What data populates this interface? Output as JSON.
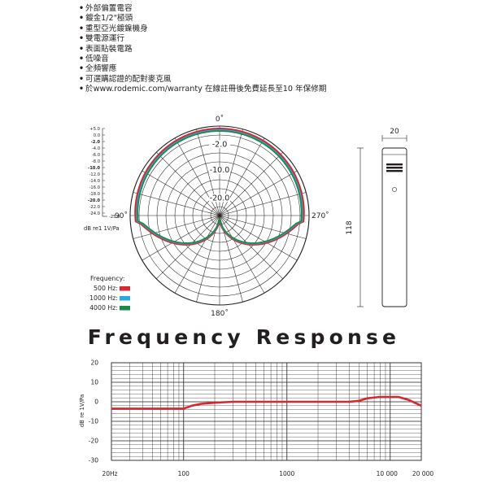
{
  "features": [
    "外部偏置電容",
    "鍍金1/2\"極頭",
    "重型亞光鍍鎳機身",
    "雙電源運行",
    "表面貼裝電路",
    "低噪音",
    "全頻響應",
    "可選購認證的配對麥克風",
    "於www.rodemic.com/warranty 在線註冊後免費延長至10 年保修期"
  ],
  "polar": {
    "angles": [
      "0˚",
      "90˚",
      "270˚",
      "180˚"
    ],
    "ring_labels": [
      "-2.0",
      "-10.0",
      "-20.0"
    ],
    "scale_labels": [
      "+5.0",
      "0.0",
      "-2.0",
      "-4.0",
      "-6.0",
      "-8.0",
      "-10.0",
      "-12.0",
      "-14.0",
      "-16.0",
      "-18.0",
      "-20.0",
      "-22.0",
      "-24.0",
      "-25.0"
    ],
    "unit_label": "dB re1 1V/Pa",
    "legend_title": "Frequency:",
    "legend": [
      {
        "label": "500 Hz:",
        "color": "#d7282f"
      },
      {
        "label": "1000 Hz:",
        "color": "#27aae1"
      },
      {
        "label": "4000 Hz:",
        "color": "#1a8a4a"
      }
    ],
    "series": [
      {
        "name": "500 Hz",
        "color": "#d7282f"
      },
      {
        "name": "1000 Hz",
        "color": "#27aae1"
      },
      {
        "name": "4000 Hz",
        "color": "#1a8a4a"
      }
    ]
  },
  "mic": {
    "width_label": "20",
    "height_label": "118"
  },
  "freq_title": "Frequency Response",
  "chart_data": {
    "type": "line",
    "title": "Frequency Response",
    "ylabel": "dB re 1V/Pa",
    "xlabel": "",
    "x_scale": "log",
    "xlim": [
      20,
      20000
    ],
    "ylim": [
      -30,
      20
    ],
    "x_ticks": [
      "20Hz",
      "100",
      "1000",
      "10 000",
      "20 000"
    ],
    "y_ticks": [
      "20",
      "10",
      "0",
      "-10",
      "-20",
      "-30"
    ],
    "series": [
      {
        "color": "#d7282f",
        "x": [
          20,
          40,
          80,
          100,
          120,
          150,
          200,
          300,
          500,
          1000,
          2000,
          3000,
          4000,
          5000,
          6000,
          8000,
          10000,
          12000,
          15000,
          20000
        ],
        "y": [
          -3.5,
          -3.5,
          -3.5,
          -3.5,
          -2,
          -1,
          -0.5,
          0,
          0,
          0,
          0,
          0,
          0,
          0.5,
          1.8,
          2.5,
          2.5,
          2.5,
          1,
          -2
        ]
      }
    ]
  }
}
